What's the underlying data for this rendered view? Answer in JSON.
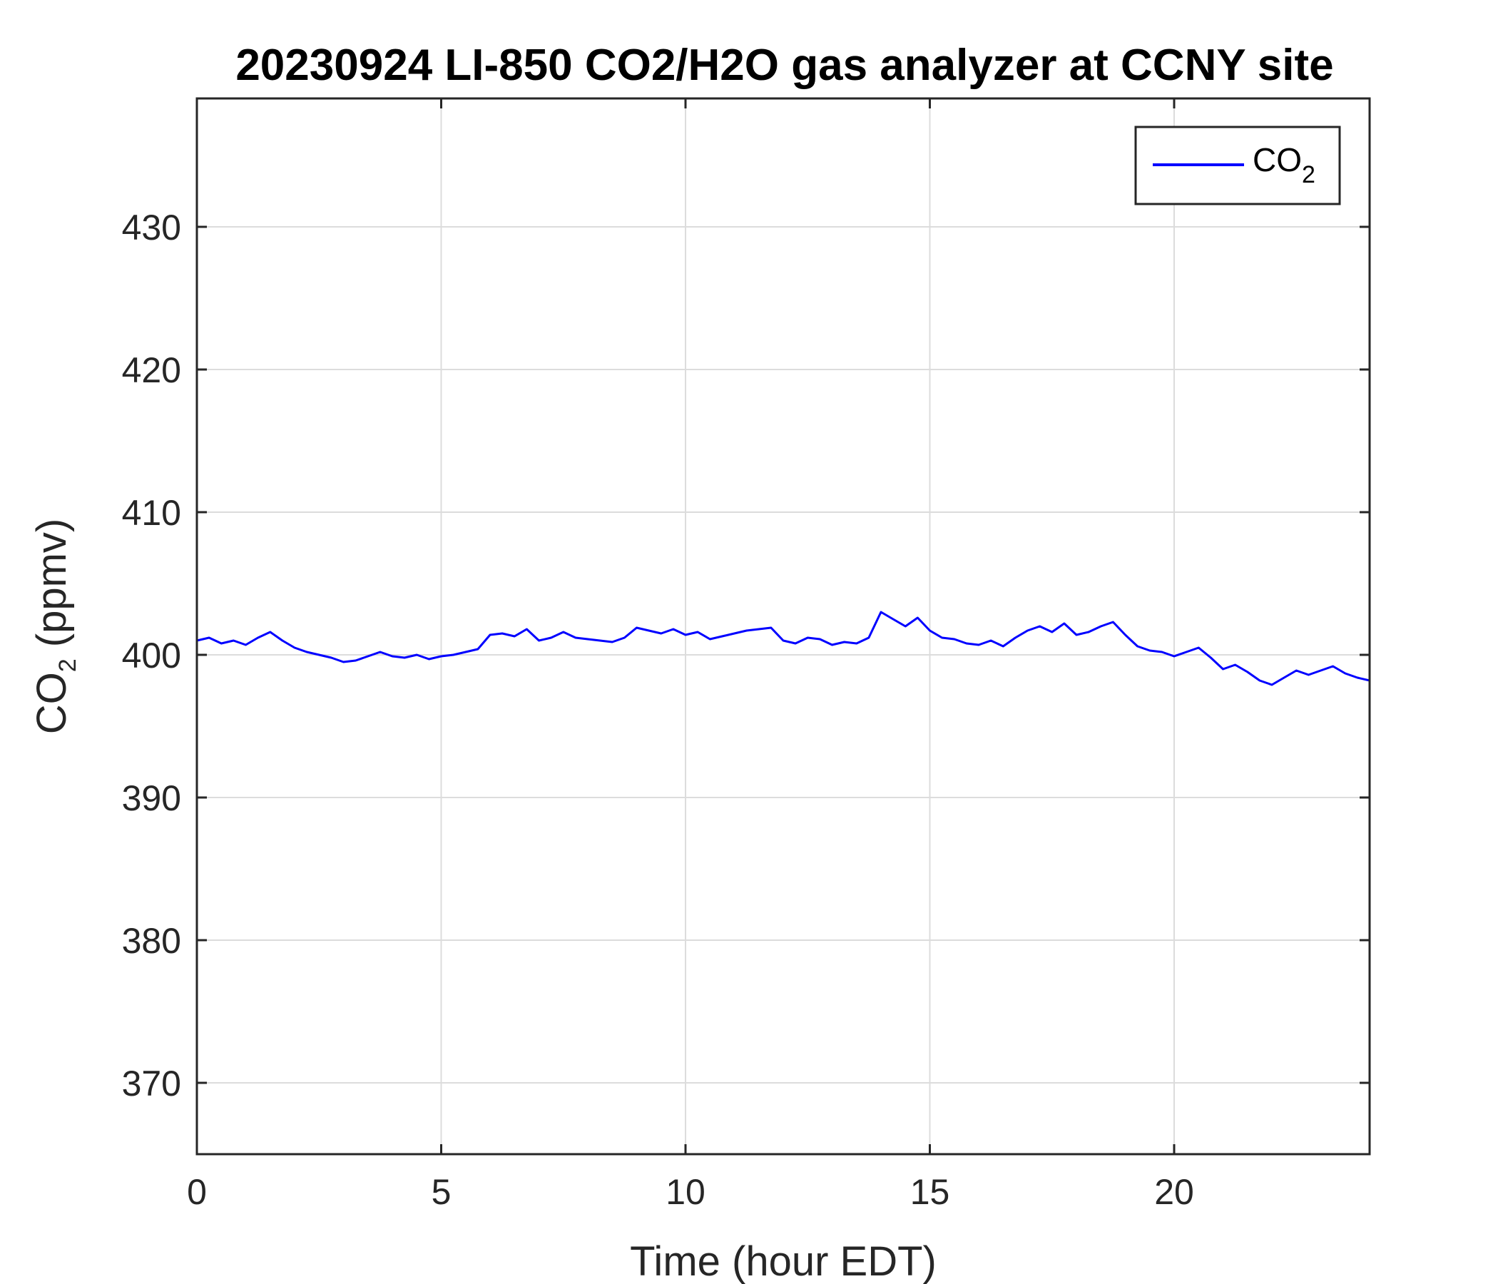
{
  "chart_data": {
    "type": "line",
    "title": "20230924 LI-850 CO2/H2O gas analyzer at CCNY site",
    "xlabel": "Time (hour EDT)",
    "ylabel": {
      "base": "CO",
      "subscript": "2",
      "suffix": " (ppmv)"
    },
    "xlim": [
      0,
      24
    ],
    "ylim": [
      365,
      439
    ],
    "xticks": [
      0,
      5,
      10,
      15,
      20
    ],
    "yticks": [
      370,
      380,
      390,
      400,
      410,
      420,
      430
    ],
    "grid": true,
    "legend": {
      "position": "top-right"
    },
    "series": [
      {
        "name": {
          "base": "CO",
          "subscript": "2"
        },
        "color": "#0000ff",
        "x": [
          0,
          0.25,
          0.5,
          0.75,
          1,
          1.25,
          1.5,
          1.75,
          2,
          2.25,
          2.5,
          2.75,
          3,
          3.25,
          3.5,
          3.75,
          4,
          4.25,
          4.5,
          4.75,
          5,
          5.25,
          5.5,
          5.75,
          6,
          6.25,
          6.5,
          6.75,
          7,
          7.25,
          7.5,
          7.75,
          8,
          8.25,
          8.5,
          8.75,
          9,
          9.25,
          9.5,
          9.75,
          10,
          10.25,
          10.5,
          10.75,
          11,
          11.25,
          11.5,
          11.75,
          12,
          12.25,
          12.5,
          12.75,
          13,
          13.25,
          13.5,
          13.75,
          14,
          14.25,
          14.5,
          14.75,
          15,
          15.25,
          15.5,
          15.75,
          16,
          16.25,
          16.5,
          16.75,
          17,
          17.25,
          17.5,
          17.75,
          18,
          18.25,
          18.5,
          18.75,
          19,
          19.25,
          19.5,
          19.75,
          20,
          20.25,
          20.5,
          20.75,
          21,
          21.25,
          21.5,
          21.75,
          22,
          22.25,
          22.5,
          22.75,
          23,
          23.25,
          23.5,
          23.75,
          24
        ],
        "y": [
          401.0,
          401.2,
          400.8,
          401.0,
          400.7,
          401.2,
          401.6,
          401.0,
          400.5,
          400.2,
          400.0,
          399.8,
          399.5,
          399.6,
          399.9,
          400.2,
          399.9,
          399.8,
          400.0,
          399.7,
          399.9,
          400.0,
          400.2,
          400.4,
          401.4,
          401.5,
          401.3,
          401.8,
          401.0,
          401.2,
          401.6,
          401.2,
          401.1,
          401.0,
          400.9,
          401.2,
          401.9,
          401.7,
          401.5,
          401.8,
          401.4,
          401.6,
          401.1,
          401.3,
          401.5,
          401.7,
          401.8,
          401.9,
          401.0,
          400.8,
          401.2,
          401.1,
          400.7,
          400.9,
          400.8,
          401.2,
          403.0,
          402.5,
          402.0,
          402.6,
          401.7,
          401.2,
          401.1,
          400.8,
          400.7,
          401.0,
          400.6,
          401.2,
          401.7,
          402.0,
          401.6,
          402.2,
          401.4,
          401.6,
          402.0,
          402.3,
          401.4,
          400.6,
          400.3,
          400.2,
          399.9,
          400.2,
          400.5,
          399.8,
          399.0,
          399.3,
          398.8,
          398.2,
          397.9,
          398.4,
          398.9,
          398.6,
          398.9,
          399.2,
          398.7,
          398.4,
          398.2
        ]
      }
    ]
  }
}
